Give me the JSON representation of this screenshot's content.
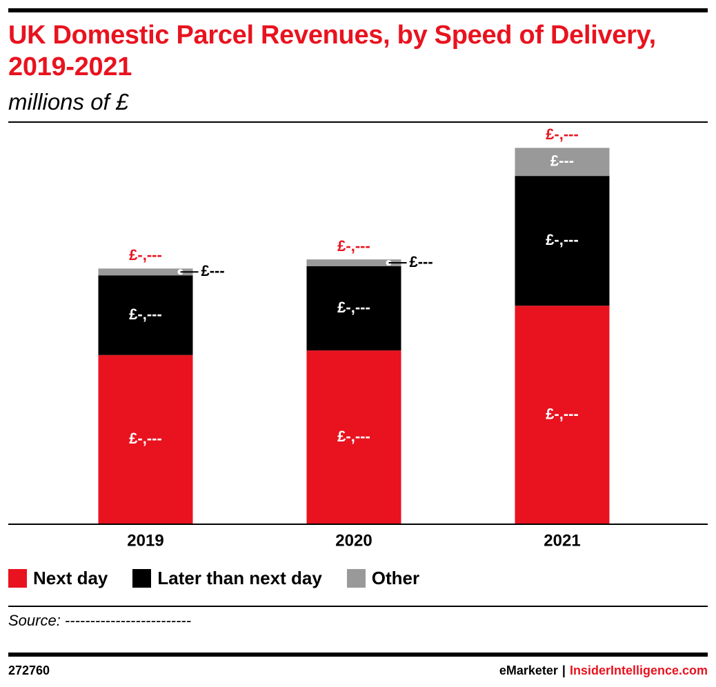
{
  "header": {
    "title": "UK Domestic Parcel Revenues, by Speed of Delivery, 2019-2021",
    "subtitle": "millions of £"
  },
  "colors": {
    "next_day": "#e8131f",
    "later_than_next_day": "#000000",
    "other": "#999999",
    "total_label": "#e8131f"
  },
  "chart_data": {
    "type": "bar",
    "stacked": true,
    "title": "UK Domestic Parcel Revenues, by Speed of Delivery, 2019-2021",
    "subtitle": "millions of £",
    "xlabel": "",
    "ylabel": "",
    "categories": [
      "2019",
      "2020",
      "2021"
    ],
    "series": [
      {
        "name": "Next day",
        "values": [
          2230,
          2290,
          2880
        ],
        "labels": [
          "£-,---",
          "£-,---",
          "£-,---"
        ]
      },
      {
        "name": "Later than next day",
        "values": [
          1050,
          1110,
          1710
        ],
        "labels": [
          "£-,---",
          "£-,---",
          "£-,---"
        ]
      },
      {
        "name": "Other",
        "values": [
          90,
          90,
          370
        ],
        "labels": [
          "£---",
          "£---",
          "£---"
        ]
      }
    ],
    "totals": {
      "values": [
        3370,
        3490,
        4960
      ],
      "labels": [
        "£-,---",
        "£-,---",
        "£-,---"
      ]
    },
    "ylim": [
      0,
      5000
    ],
    "grid": false,
    "legend_position": "bottom-left"
  },
  "legend": {
    "items": [
      {
        "label": "Next day"
      },
      {
        "label": "Later than next day"
      },
      {
        "label": "Other"
      }
    ]
  },
  "footer": {
    "source": "Source: -------------------------",
    "chart_id": "272760",
    "brand": "eMarketer",
    "separator": "|",
    "site": "InsiderIntelligence.com"
  }
}
